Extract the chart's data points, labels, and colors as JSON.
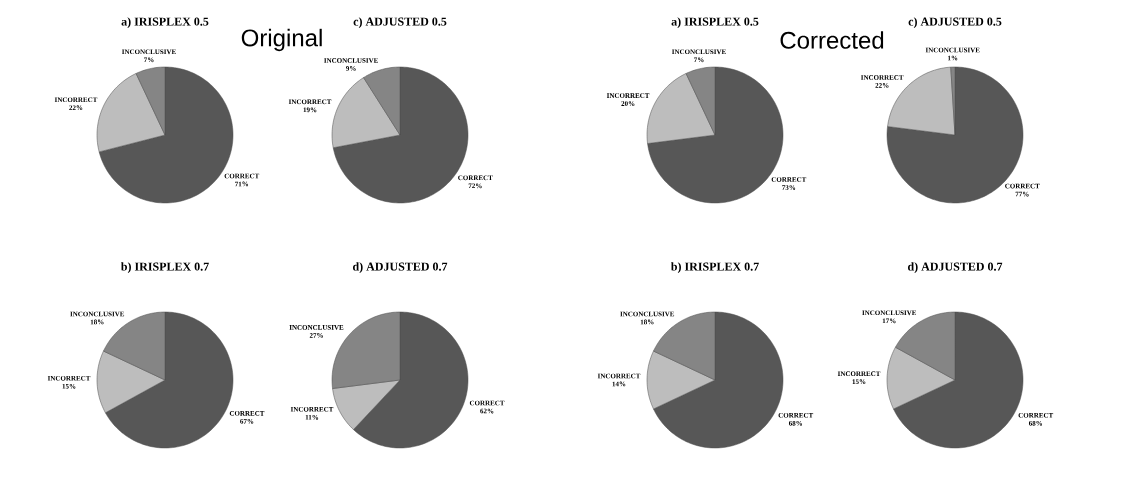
{
  "chart_data": [
    {
      "type": "pie",
      "title": "a)  IRISPLEX 0.5",
      "annotations": [
        "Original"
      ],
      "categories": [
        "CORRECT",
        "INCORRECT",
        "INCONCLUSIVE"
      ],
      "values": [
        71,
        22,
        7
      ],
      "value_labels": [
        "71%",
        "22%",
        "7%"
      ],
      "colors": [
        "#575757",
        "#bdbdbd",
        "#858585"
      ]
    },
    {
      "type": "pie",
      "title": "c)  ADJUSTED 0.5",
      "categories": [
        "CORRECT",
        "INCORRECT",
        "INCONCLUSIVE"
      ],
      "values": [
        72,
        19,
        9
      ],
      "value_labels": [
        "72%",
        "19%",
        "9%"
      ],
      "colors": [
        "#575757",
        "#bdbdbd",
        "#858585"
      ]
    },
    {
      "type": "pie",
      "title": "a)  IRISPLEX 0.5",
      "annotations": [
        "Corrected"
      ],
      "categories": [
        "CORRECT",
        "INCORRECT",
        "INCONCLUSIVE"
      ],
      "values": [
        73,
        20,
        7
      ],
      "value_labels": [
        "73%",
        "20%",
        "7%"
      ],
      "colors": [
        "#575757",
        "#bdbdbd",
        "#858585"
      ]
    },
    {
      "type": "pie",
      "title": "c)  ADJUSTED 0.5",
      "categories": [
        "CORRECT",
        "INCORRECT",
        "INCONCLUSIVE"
      ],
      "values": [
        77,
        22,
        1
      ],
      "value_labels": [
        "77%",
        "22%",
        "1%"
      ],
      "colors": [
        "#575757",
        "#bdbdbd",
        "#858585"
      ]
    },
    {
      "type": "pie",
      "title": "b)  IRISPLEX 0.7",
      "categories": [
        "CORRECT",
        "INCORRECT",
        "INCONCLUSIVE"
      ],
      "values": [
        67,
        15,
        18
      ],
      "value_labels": [
        "67%",
        "15%",
        "18%"
      ],
      "colors": [
        "#575757",
        "#bdbdbd",
        "#858585"
      ]
    },
    {
      "type": "pie",
      "title": "d)  ADJUSTED 0.7",
      "categories": [
        "CORRECT",
        "INCORRECT",
        "INCONCLUSIVE"
      ],
      "values": [
        62,
        11,
        27
      ],
      "value_labels": [
        "62%",
        "11%",
        "27%"
      ],
      "colors": [
        "#575757",
        "#bdbdbd",
        "#858585"
      ]
    },
    {
      "type": "pie",
      "title": "b)  IRISPLEX 0.7",
      "categories": [
        "CORRECT",
        "INCORRECT",
        "INCONCLUSIVE"
      ],
      "values": [
        68,
        14,
        18
      ],
      "value_labels": [
        "68%",
        "14%",
        "18%"
      ],
      "colors": [
        "#575757",
        "#bdbdbd",
        "#858585"
      ]
    },
    {
      "type": "pie",
      "title": "d)  ADJUSTED 0.7",
      "categories": [
        "CORRECT",
        "INCORRECT",
        "INCONCLUSIVE"
      ],
      "values": [
        68,
        15,
        17
      ],
      "value_labels": [
        "68%",
        "15%",
        "17%"
      ],
      "colors": [
        "#575757",
        "#bdbdbd",
        "#858585"
      ]
    }
  ]
}
